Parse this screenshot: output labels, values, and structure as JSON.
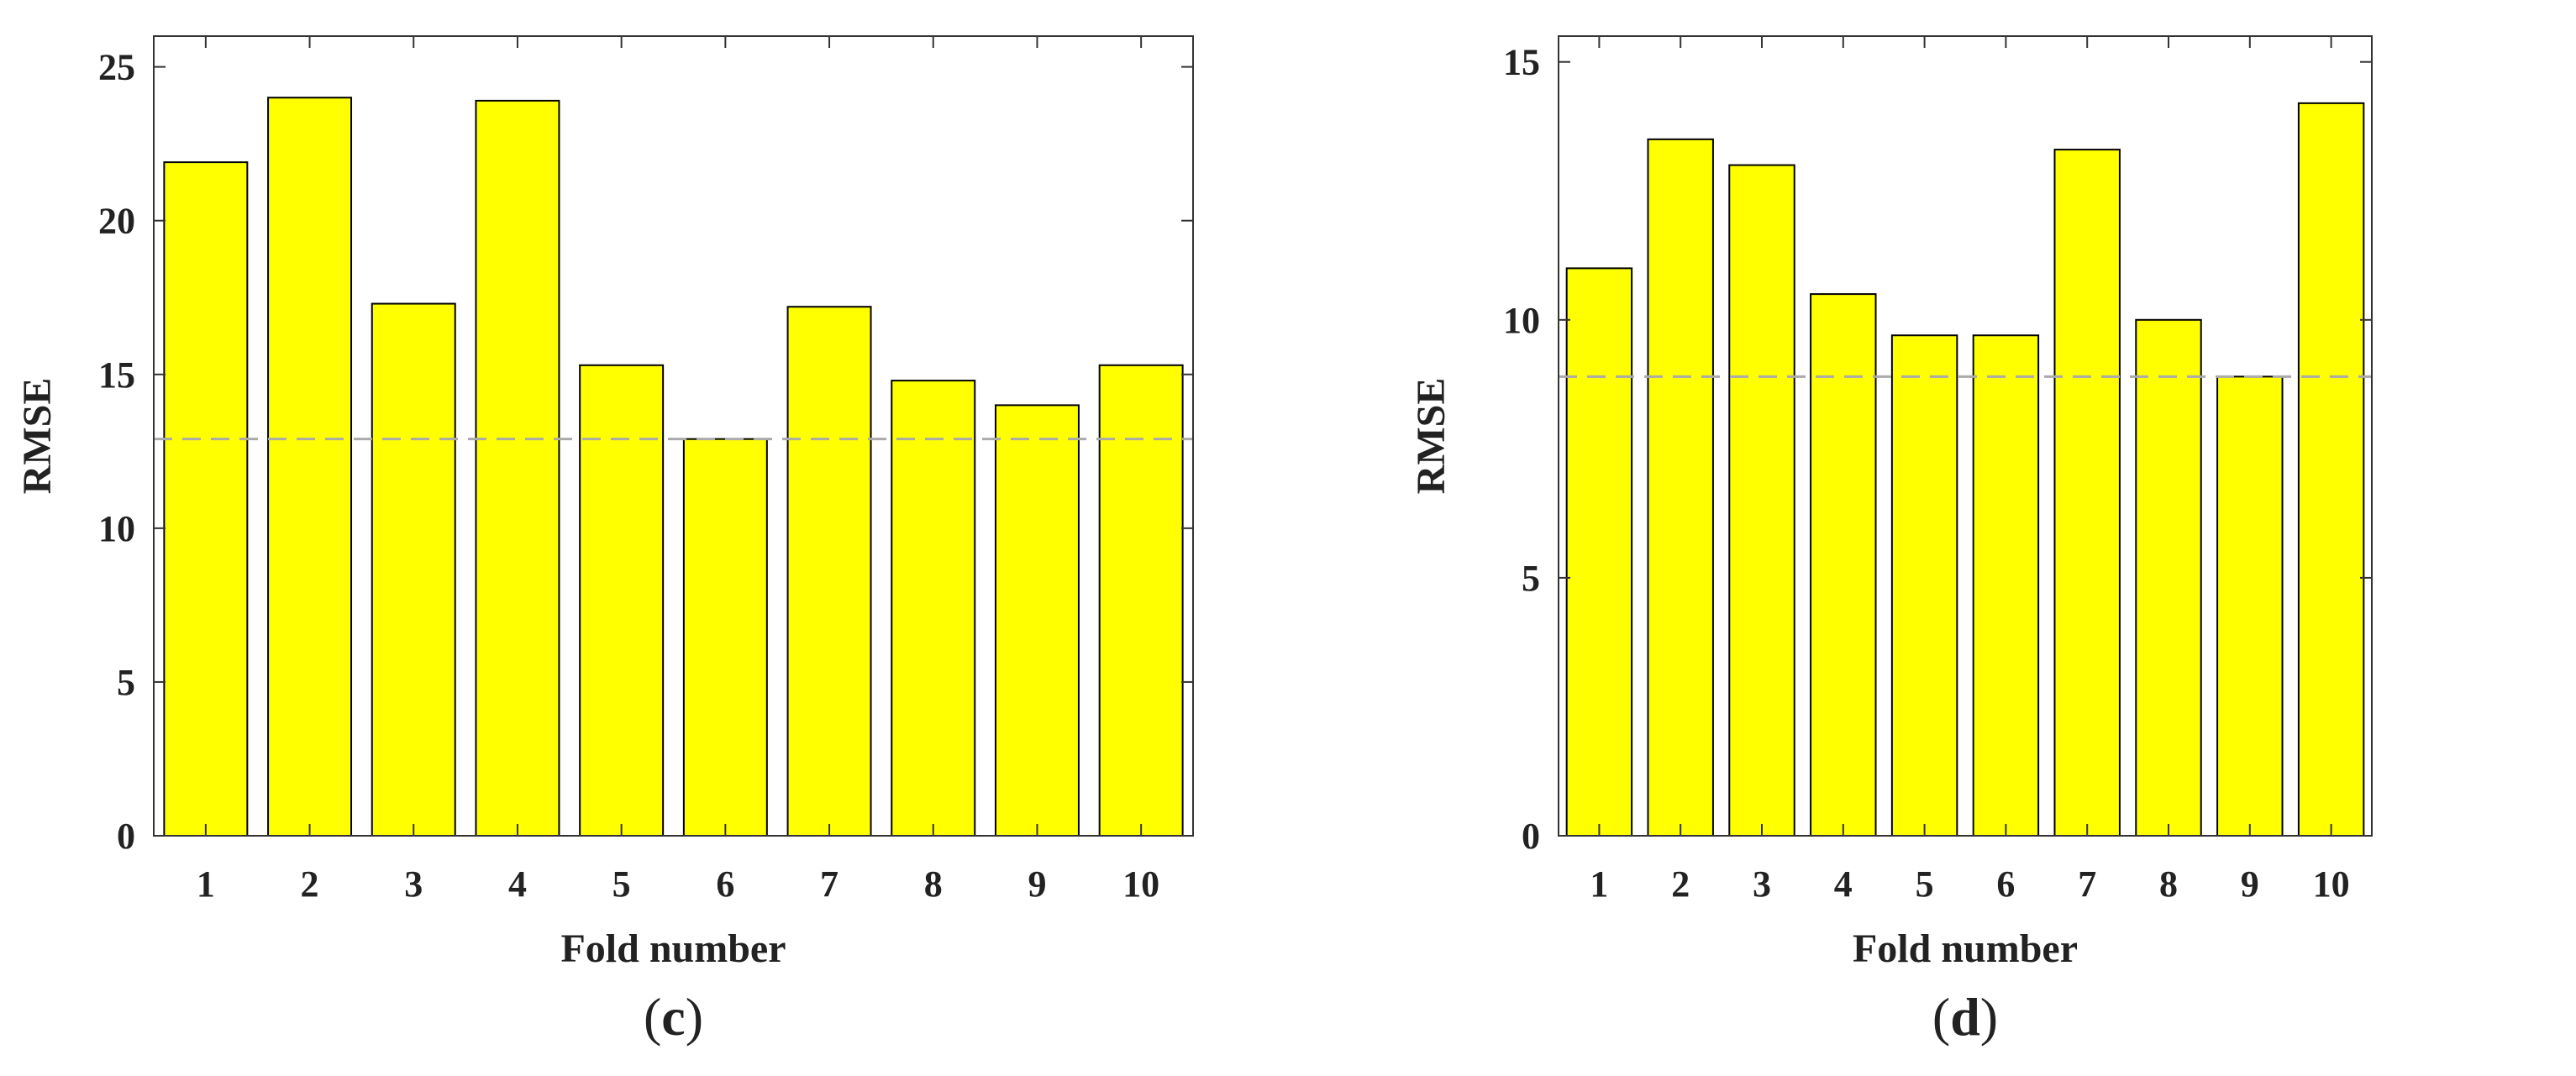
{
  "chart_data": [
    {
      "type": "bar",
      "panel_label": "c",
      "categories": [
        "1",
        "2",
        "3",
        "4",
        "5",
        "6",
        "7",
        "8",
        "9",
        "10"
      ],
      "values": [
        21.9,
        24.0,
        17.3,
        23.9,
        15.3,
        12.9,
        17.2,
        14.8,
        14.0,
        15.3
      ],
      "reference_line": 12.9,
      "xlabel": "Fold number",
      "ylabel": "RMSE",
      "ylim": [
        0,
        26
      ],
      "yticks": [
        0,
        5,
        10,
        15,
        20,
        25
      ],
      "bar_color": "#ffff00",
      "reference_line_color": "#aaaaaa",
      "grid": false
    },
    {
      "type": "bar",
      "panel_label": "d",
      "categories": [
        "1",
        "2",
        "3",
        "4",
        "5",
        "6",
        "7",
        "8",
        "9",
        "10"
      ],
      "values": [
        11.0,
        13.5,
        13.0,
        10.5,
        9.7,
        9.7,
        13.3,
        10.0,
        8.9,
        14.2
      ],
      "reference_line": 8.9,
      "xlabel": "Fold number",
      "ylabel": "RMSE",
      "ylim": [
        0,
        15.5
      ],
      "yticks": [
        0,
        5,
        10,
        15
      ],
      "bar_color": "#ffff00",
      "reference_line_color": "#aaaaaa",
      "grid": false
    }
  ]
}
